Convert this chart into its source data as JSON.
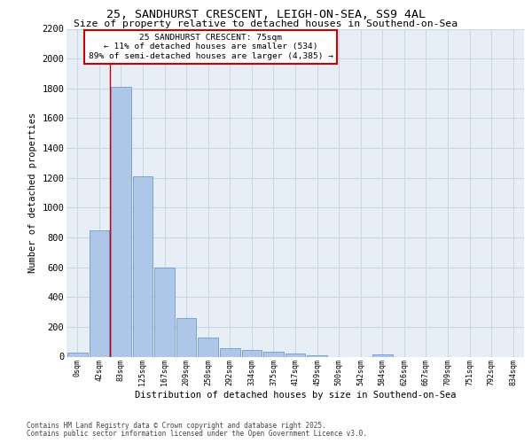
{
  "title_line1": "25, SANDHURST CRESCENT, LEIGH-ON-SEA, SS9 4AL",
  "title_line2": "Size of property relative to detached houses in Southend-on-Sea",
  "xlabel": "Distribution of detached houses by size in Southend-on-Sea",
  "ylabel": "Number of detached properties",
  "bar_labels": [
    "0sqm",
    "42sqm",
    "83sqm",
    "125sqm",
    "167sqm",
    "209sqm",
    "250sqm",
    "292sqm",
    "334sqm",
    "375sqm",
    "417sqm",
    "459sqm",
    "500sqm",
    "542sqm",
    "584sqm",
    "626sqm",
    "667sqm",
    "709sqm",
    "751sqm",
    "792sqm",
    "834sqm"
  ],
  "bar_values": [
    25,
    845,
    1810,
    1210,
    600,
    260,
    130,
    55,
    45,
    30,
    20,
    10,
    0,
    0,
    15,
    0,
    0,
    0,
    0,
    0,
    0
  ],
  "bar_color": "#aec6e8",
  "bar_edge_color": "#5a8fc2",
  "grid_color": "#c8d8e8",
  "background_color": "#e8eef5",
  "vline_x": 1.5,
  "vline_color": "#cc0000",
  "annotation_text": "25 SANDHURST CRESCENT: 75sqm\n← 11% of detached houses are smaller (534)\n89% of semi-detached houses are larger (4,385) →",
  "annotation_box_edgecolor": "#cc0000",
  "ylim": [
    0,
    2200
  ],
  "yticks": [
    0,
    200,
    400,
    600,
    800,
    1000,
    1200,
    1400,
    1600,
    1800,
    2000,
    2200
  ],
  "footer_line1": "Contains HM Land Registry data © Crown copyright and database right 2025.",
  "footer_line2": "Contains public sector information licensed under the Open Government Licence v3.0."
}
